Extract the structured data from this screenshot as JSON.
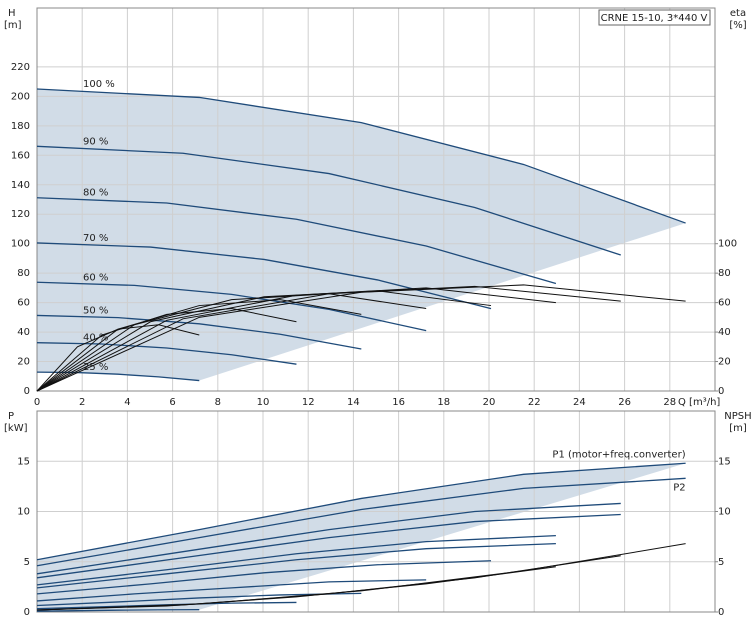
{
  "chart_data": [
    {
      "type": "line",
      "title": "CRNE 15-10, 3*440 V",
      "y_label": "H",
      "y_unit": "[m]",
      "y2_label": "eta",
      "y2_unit": "[%]",
      "x_label": "Q [m³/h]",
      "xlim": [
        0,
        30
      ],
      "xticks": [
        0,
        2,
        4,
        6,
        8,
        10,
        12,
        14,
        16,
        18,
        20,
        22,
        24,
        26,
        28
      ],
      "ylim": [
        0,
        260
      ],
      "yticks": [
        0,
        20,
        40,
        60,
        80,
        100,
        120,
        140,
        160,
        180,
        200,
        220
      ],
      "y2lim": [
        0,
        260
      ],
      "y2ticks": [
        0,
        20,
        40,
        60,
        80,
        100
      ],
      "grid": true,
      "show_x_tick_labels": true,
      "area_color": "#c9d6e3",
      "series": [
        {
          "name": "100 %",
          "color": "#1f4b7a",
          "x": [
            0,
            7.18,
            14.35,
            21.53,
            28.7
          ],
          "values": [
            205,
            199.3,
            182.2,
            153.8,
            114
          ]
        },
        {
          "name": "90 %",
          "color": "#1f4b7a",
          "x": [
            0,
            6.46,
            12.92,
            19.37,
            25.83
          ],
          "values": [
            166.1,
            161.4,
            147.6,
            124.6,
            92.3
          ]
        },
        {
          "name": "80 %",
          "color": "#1f4b7a",
          "x": [
            0,
            5.74,
            11.48,
            17.22,
            22.96
          ],
          "values": [
            131.2,
            127.6,
            116.6,
            98.4,
            73
          ]
        },
        {
          "name": "70 %",
          "color": "#1f4b7a",
          "x": [
            0,
            5.02,
            10.05,
            15.07,
            20.09
          ],
          "values": [
            100.5,
            97.7,
            89.3,
            75.4,
            55.9
          ]
        },
        {
          "name": "60 %",
          "color": "#1f4b7a",
          "x": [
            0,
            4.31,
            8.61,
            12.92,
            17.22
          ],
          "values": [
            73.8,
            71.7,
            65.6,
            55.4,
            41
          ]
        },
        {
          "name": "50 %",
          "color": "#1f4b7a",
          "x": [
            0,
            3.59,
            7.18,
            10.76,
            14.35
          ],
          "values": [
            51.3,
            49.8,
            45.6,
            38.5,
            28.5
          ]
        },
        {
          "name": "40 %",
          "color": "#1f4b7a",
          "x": [
            0,
            2.87,
            5.74,
            8.61,
            11.48
          ],
          "values": [
            32.8,
            31.9,
            29.2,
            24.6,
            18.2
          ]
        },
        {
          "name": "25 %",
          "color": "#1f4b7a",
          "x": [
            0,
            1.79,
            3.59,
            5.38,
            7.18
          ],
          "values": [
            12.8,
            12.5,
            11.4,
            9.6,
            7.1
          ]
        },
        {
          "axis": "y2",
          "color": "#111",
          "x": [
            0,
            7.18,
            14.35,
            21.53,
            28.7
          ],
          "values": [
            0,
            50,
            67,
            72,
            61
          ]
        },
        {
          "axis": "y2",
          "color": "#111",
          "x": [
            0,
            6.46,
            12.92,
            19.37,
            25.83
          ],
          "values": [
            0,
            49,
            66,
            71,
            61
          ]
        },
        {
          "axis": "y2",
          "color": "#111",
          "x": [
            0,
            5.74,
            11.48,
            17.22,
            22.96
          ],
          "values": [
            0,
            48,
            65,
            70,
            60
          ]
        },
        {
          "axis": "y2",
          "color": "#111",
          "x": [
            0,
            5.02,
            10.05,
            15.07,
            20.09
          ],
          "values": [
            0,
            47,
            64,
            68,
            58
          ]
        },
        {
          "axis": "y2",
          "color": "#111",
          "x": [
            0,
            4.31,
            8.61,
            12.92,
            17.22
          ],
          "values": [
            0,
            45,
            62,
            66,
            56
          ]
        },
        {
          "axis": "y2",
          "color": "#111",
          "x": [
            0,
            3.59,
            7.18,
            10.76,
            14.35
          ],
          "values": [
            0,
            42,
            58,
            62,
            52
          ]
        },
        {
          "axis": "y2",
          "color": "#111",
          "x": [
            0,
            2.87,
            5.74,
            8.61,
            11.48
          ],
          "values": [
            0,
            38,
            52,
            56,
            47
          ]
        },
        {
          "axis": "y2",
          "color": "#111",
          "x": [
            0,
            1.79,
            3.59,
            5.38,
            7.18
          ],
          "values": [
            0,
            30,
            42,
            45,
            38
          ]
        }
      ]
    },
    {
      "type": "line",
      "y_label": "P",
      "y_unit": "[kW]",
      "y2_label": "NPSH",
      "y2_unit": "[m]",
      "xlim": [
        0,
        30
      ],
      "xticks": [
        0,
        2,
        4,
        6,
        8,
        10,
        12,
        14,
        16,
        18,
        20,
        22,
        24,
        26,
        28
      ],
      "ylim": [
        0,
        20
      ],
      "yticks": [
        0,
        5,
        10,
        15
      ],
      "y2lim": [
        0,
        20
      ],
      "y2ticks": [
        0,
        5,
        10,
        15
      ],
      "grid": true,
      "show_x_tick_labels": false,
      "area_color": "#c9d6e3",
      "series": [
        {
          "name": "P1 (motor+freq.converter)",
          "color": "#1f4b7a",
          "x": [
            0,
            7.18,
            14.35,
            21.53,
            28.7
          ],
          "values": [
            5.2,
            8.2,
            11.3,
            13.7,
            14.8
          ]
        },
        {
          "name": "P2",
          "color": "#1f4b7a",
          "x": [
            0,
            7.18,
            14.35,
            21.53,
            28.7
          ],
          "values": [
            4.6,
            7.4,
            10.2,
            12.3,
            13.3
          ]
        },
        {
          "color": "#1f4b7a",
          "x": [
            0,
            6.46,
            12.92,
            19.37,
            25.83
          ],
          "values": [
            3.8,
            6.0,
            8.2,
            10.0,
            10.8
          ]
        },
        {
          "color": "#1f4b7a",
          "x": [
            0,
            6.46,
            12.92,
            19.37,
            25.83
          ],
          "values": [
            3.4,
            5.4,
            7.4,
            9.0,
            9.7
          ]
        },
        {
          "color": "#1f4b7a",
          "x": [
            0,
            5.74,
            11.48,
            17.22,
            22.96
          ],
          "values": [
            2.7,
            4.2,
            5.8,
            7.0,
            7.6
          ]
        },
        {
          "color": "#1f4b7a",
          "x": [
            0,
            5.74,
            11.48,
            17.22,
            22.96
          ],
          "values": [
            2.4,
            3.8,
            5.2,
            6.3,
            6.8
          ]
        },
        {
          "color": "#1f4b7a",
          "x": [
            0,
            5.02,
            10.05,
            15.07,
            20.09
          ],
          "values": [
            1.8,
            2.8,
            3.9,
            4.7,
            5.1
          ]
        },
        {
          "color": "#1f4b7a",
          "x": [
            0,
            4.31,
            8.61,
            12.92,
            17.22
          ],
          "values": [
            1.1,
            1.8,
            2.4,
            3.0,
            3.2
          ]
        },
        {
          "color": "#1f4b7a",
          "x": [
            0,
            3.59,
            7.18,
            10.76,
            14.35
          ],
          "values": [
            0.65,
            1.0,
            1.4,
            1.7,
            1.85
          ]
        },
        {
          "color": "#1f4b7a",
          "x": [
            0,
            2.87,
            5.74,
            8.61,
            11.48
          ],
          "values": [
            0.33,
            0.52,
            0.72,
            0.88,
            0.95
          ]
        },
        {
          "color": "#1f4b7a",
          "x": [
            0,
            1.79,
            3.59,
            5.38,
            7.18
          ],
          "values": [
            0.08,
            0.13,
            0.18,
            0.21,
            0.23
          ]
        },
        {
          "axis": "y2",
          "color": "#111",
          "x": [
            0,
            7.18,
            14.35,
            21.53,
            28.7
          ],
          "values": [
            0.2,
            0.8,
            2.1,
            4.1,
            6.8
          ]
        },
        {
          "axis": "y2",
          "color": "#111",
          "x": [
            0,
            6.46,
            12.92,
            19.37,
            25.83
          ],
          "values": [
            0.2,
            0.7,
            1.8,
            3.4,
            5.6
          ]
        },
        {
          "axis": "y2",
          "color": "#111",
          "x": [
            0,
            5.74,
            11.48,
            17.22,
            22.96
          ],
          "values": [
            0.2,
            0.6,
            1.5,
            2.8,
            4.5
          ]
        }
      ]
    }
  ]
}
